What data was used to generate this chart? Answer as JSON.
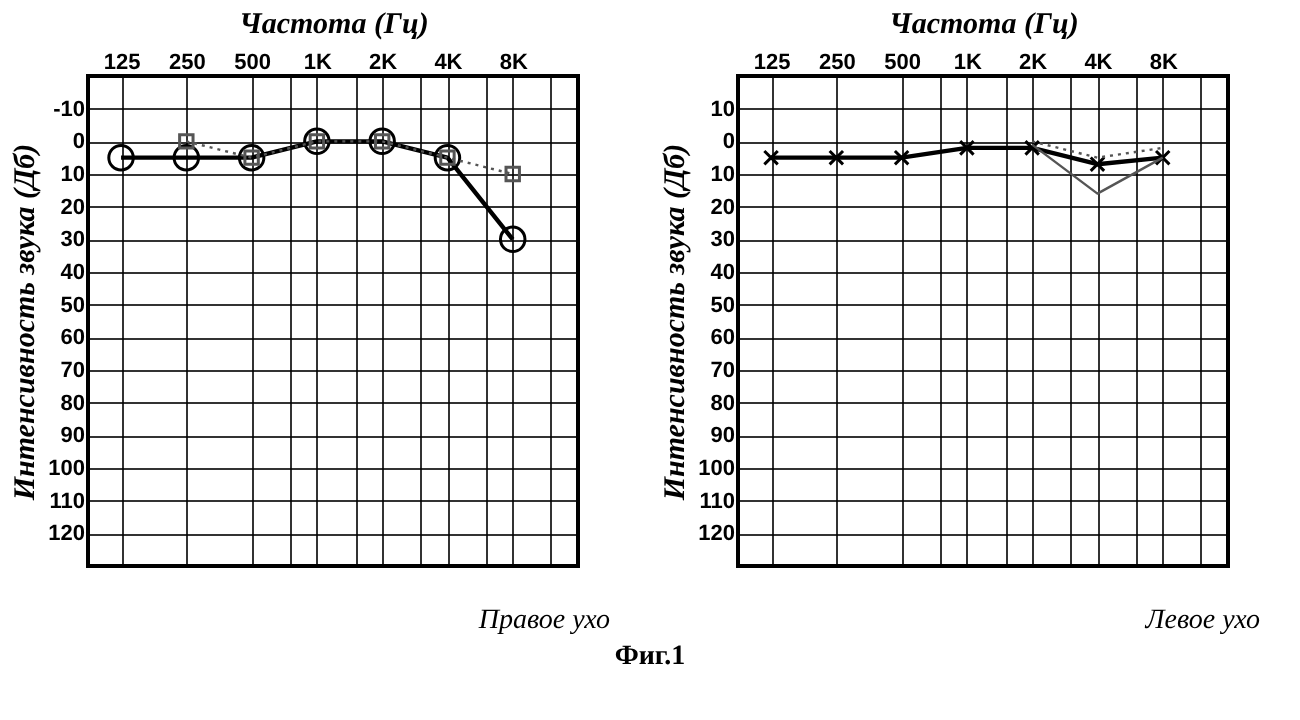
{
  "chart_data": [
    {
      "type": "line",
      "xlabel": "Частота (Гц)",
      "ylabel": "Интенсивность звука (Дб)",
      "log": "x",
      "grid": true,
      "x": [
        125,
        250,
        500,
        1000,
        2000,
        4000,
        8000
      ],
      "xlim": [
        88,
        16000
      ],
      "xticks": [
        125,
        250,
        500,
        {
          "value": 750,
          "label": null
        },
        {
          "value": 1000,
          "label": "1K"
        },
        {
          "value": 1500,
          "label": null
        },
        {
          "value": 2000,
          "label": "2K"
        },
        {
          "value": 3000,
          "label": null
        },
        {
          "value": 4000,
          "label": "4K"
        },
        {
          "value": 6000,
          "label": null
        },
        {
          "value": 8000,
          "label": "8K"
        },
        {
          "value": 12000,
          "label": null
        }
      ],
      "ylim": [
        130,
        -20
      ],
      "yticks": [
        -10,
        0,
        10,
        20,
        30,
        40,
        50,
        60,
        70,
        80,
        90,
        100,
        110,
        120
      ],
      "series": [
        {
          "color": "#000000",
          "marker": "circle",
          "line_style": "solid",
          "values": [
            5,
            5,
            5,
            0,
            0,
            5,
            30
          ]
        },
        {
          "color": "#555555",
          "marker": "square",
          "line_style": "dotted",
          "x": [
            250,
            500,
            1000,
            2000,
            4000,
            8000
          ],
          "values": [
            0,
            5,
            0,
            0,
            5,
            10
          ]
        }
      ],
      "annotations": [
        "Правое ухо"
      ]
    },
    {
      "type": "line",
      "xlabel": "Частота (Гц)",
      "ylabel": "Интенсивность звука (Дб)",
      "log": "x",
      "grid": true,
      "x": [
        125,
        250,
        500,
        1000,
        2000,
        4000,
        8000
      ],
      "xlim": [
        88,
        16000
      ],
      "xticks": [
        125,
        250,
        500,
        {
          "value": 750,
          "label": null
        },
        {
          "value": 1000,
          "label": "1K"
        },
        {
          "value": 1500,
          "label": null
        },
        {
          "value": 2000,
          "label": "2K"
        },
        {
          "value": 3000,
          "label": null
        },
        {
          "value": 4000,
          "label": "4K"
        },
        {
          "value": 6000,
          "label": null
        },
        {
          "value": 8000,
          "label": "8K"
        },
        {
          "value": 12000,
          "label": null
        }
      ],
      "ylim": [
        130,
        -20
      ],
      "yticks": [
        {
          "value": -10,
          "label": "10"
        },
        0,
        10,
        20,
        30,
        40,
        50,
        60,
        70,
        80,
        90,
        100,
        110,
        120
      ],
      "series": [
        {
          "color": "#000000",
          "marker": "cross",
          "line_style": "solid",
          "values": [
            5,
            5,
            5,
            2,
            2,
            7,
            5
          ]
        },
        {
          "color": "#555555",
          "marker": "none",
          "line_style": "dotted",
          "x": [
            2000,
            4000,
            8000
          ],
          "values": [
            0,
            5,
            2
          ]
        },
        {
          "color": "#555555",
          "marker": "none",
          "line_style": "solid",
          "x": [
            2000,
            4000,
            8000
          ],
          "values": [
            1,
            16,
            5
          ]
        }
      ],
      "annotations": [
        "Левое ухо",
        "Фиг.1"
      ]
    }
  ]
}
